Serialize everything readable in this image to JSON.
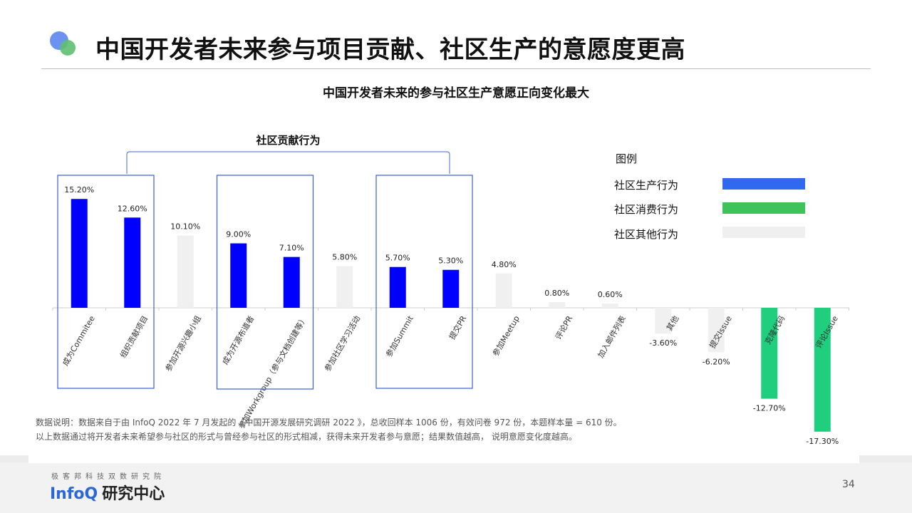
{
  "header": {
    "title": "中国开发者未来参与项目贡献、社区生产的意愿度更高"
  },
  "chart_data": {
    "type": "bar",
    "title": "中国开发者未来的参与社区生产意愿正向变化最大",
    "annotation": "社区贡献行为",
    "categories": [
      "成为Commitee",
      "组织贡献项目",
      "参加开源兴趣小组",
      "成为开源布道者",
      "参加Workgroup（参与文档创建等）",
      "参加社区学习活动",
      "参加Summit",
      "提交PR",
      "参加Meetup",
      "评论PR",
      "加入邮件列表",
      "其他",
      "提交Issue",
      "克隆代码",
      "评论Issue"
    ],
    "values": [
      15.2,
      12.6,
      10.1,
      9.0,
      7.1,
      5.8,
      5.7,
      5.3,
      4.8,
      0.8,
      0.6,
      -3.6,
      -6.2,
      -12.7,
      -17.3
    ],
    "value_labels": [
      "15.20%",
      "12.60%",
      "10.10%",
      "9.00%",
      "7.10%",
      "5.80%",
      "5.70%",
      "5.30%",
      "4.80%",
      "0.80%",
      "0.60%",
      "-3.60%",
      "-6.20%",
      "-12.70%",
      "-17.30%"
    ],
    "groups": [
      "社区生产行为",
      "社区生产行为",
      "社区其他行为",
      "社区生产行为",
      "社区生产行为",
      "社区其他行为",
      "社区生产行为",
      "社区生产行为",
      "社区其他行为",
      "社区其他行为",
      "社区其他行为",
      "社区其他行为",
      "社区其他行为",
      "社区消费行为",
      "社区消费行为"
    ],
    "highlight_groups": [
      [
        "成为Commitee",
        "组织贡献项目"
      ],
      [
        "成为开源布道者",
        "参加Workgroup（参与文档创建等）"
      ],
      [
        "参加Summit",
        "提交PR"
      ]
    ],
    "legend": {
      "title": "图例",
      "placement": "top-right",
      "entries": [
        {
          "label": "社区生产行为",
          "color": "#3069f0"
        },
        {
          "label": "社区消费行为",
          "color": "#3ec25a"
        },
        {
          "label": "社区其他行为",
          "color": "#efefef"
        }
      ]
    },
    "series_colors": {
      "社区生产行为": "#0000ff",
      "社区消费行为": "#1fcf7e",
      "社区其他行为": "#f0f0f0"
    },
    "grid": false
  },
  "notes": [
    "数据说明：数据来自于由 InfoQ 2022 年 7 月发起的《中国开源发展研究调研 2022 》，总收回样本 1006 份，有效问卷 972 份，本题样本量 = 610 份。",
    "以上数据通过将开发者未来希望参与社区的形式与曾经参与社区的形式相减，获得未来开发者参与意愿；结果数值越高，  说明意愿变化度越高。"
  ],
  "footer": {
    "org": "极客邦科技双数研究院",
    "logo_brand": "InfoQ",
    "logo_suffix": "研究中心",
    "page_number": "34"
  }
}
